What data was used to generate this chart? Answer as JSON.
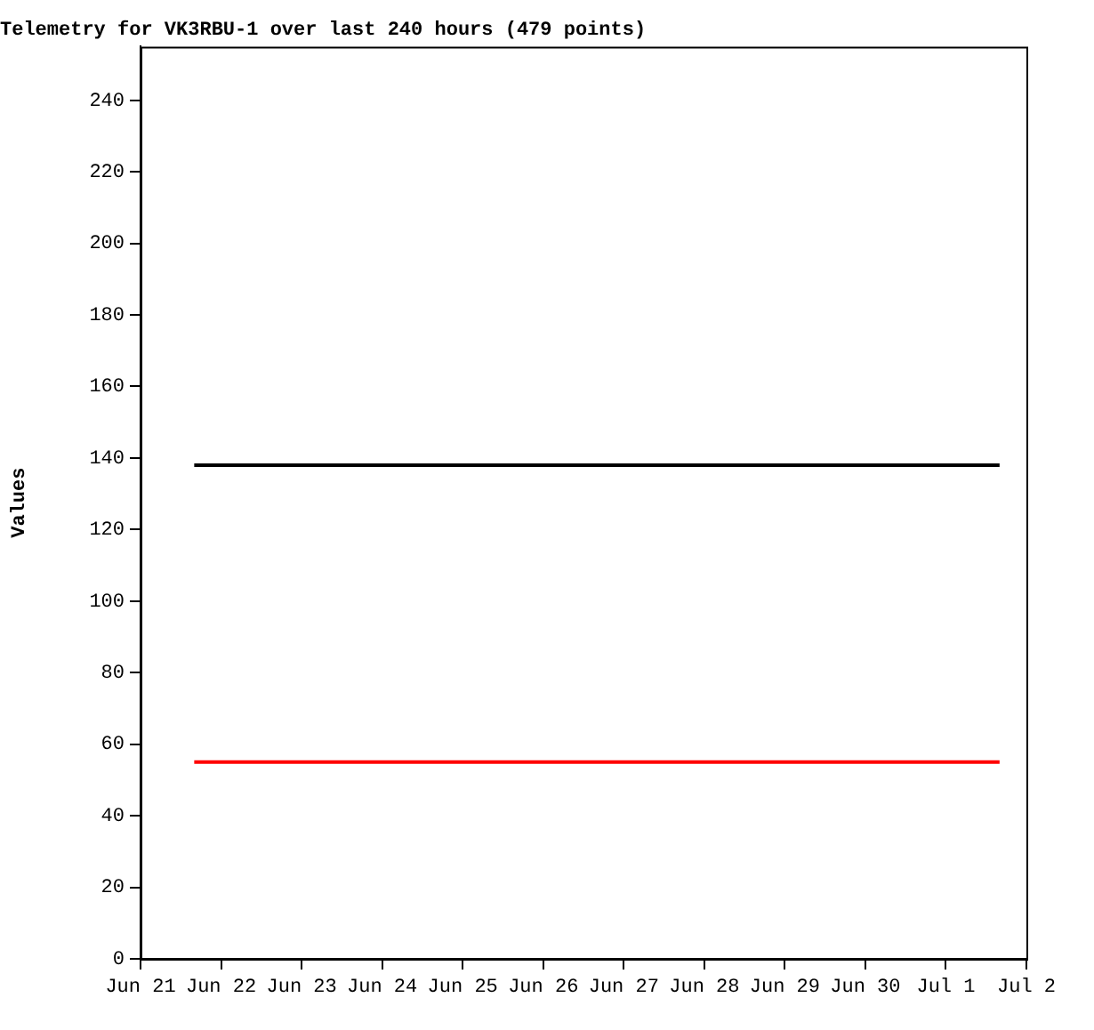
{
  "chart_data": {
    "type": "line",
    "title": "Telemetry for VK3RBU-1 over last 240 hours (479 points)",
    "ylabel": "Values",
    "series": [
      {
        "color": "#000000",
        "x": [
          "--06-21T16:00",
          "--07-01T16:00"
        ],
        "values": [
          138,
          138
        ]
      },
      {
        "color": "#ff0000",
        "x": [
          "--06-21T16:00",
          "--07-01T16:00"
        ],
        "values": [
          55,
          55
        ]
      }
    ],
    "xlim": [
      "--06-21",
      "--07-02"
    ],
    "xticks": [
      {
        "value": "--06-21",
        "label": "Jun 21"
      },
      {
        "value": "--06-22",
        "label": "Jun 22"
      },
      {
        "value": "--06-23",
        "label": "Jun 23"
      },
      {
        "value": "--06-24",
        "label": "Jun 24"
      },
      {
        "value": "--06-25",
        "label": "Jun 25"
      },
      {
        "value": "--06-26",
        "label": "Jun 26"
      },
      {
        "value": "--06-27",
        "label": "Jun 27"
      },
      {
        "value": "--06-28",
        "label": "Jun 28"
      },
      {
        "value": "--06-29",
        "label": "Jun 29"
      },
      {
        "value": "--06-30",
        "label": "Jun 30"
      },
      {
        "value": "--07-01",
        "label": "Jul 1"
      },
      {
        "value": "--07-02",
        "label": "Jul 2"
      }
    ],
    "ylim": [
      0,
      255
    ],
    "yticks": [
      0,
      20,
      40,
      60,
      80,
      100,
      120,
      140,
      160,
      180,
      200,
      220,
      240
    ],
    "grid": false,
    "legend": false,
    "marker": "none",
    "line_style": "solid"
  }
}
